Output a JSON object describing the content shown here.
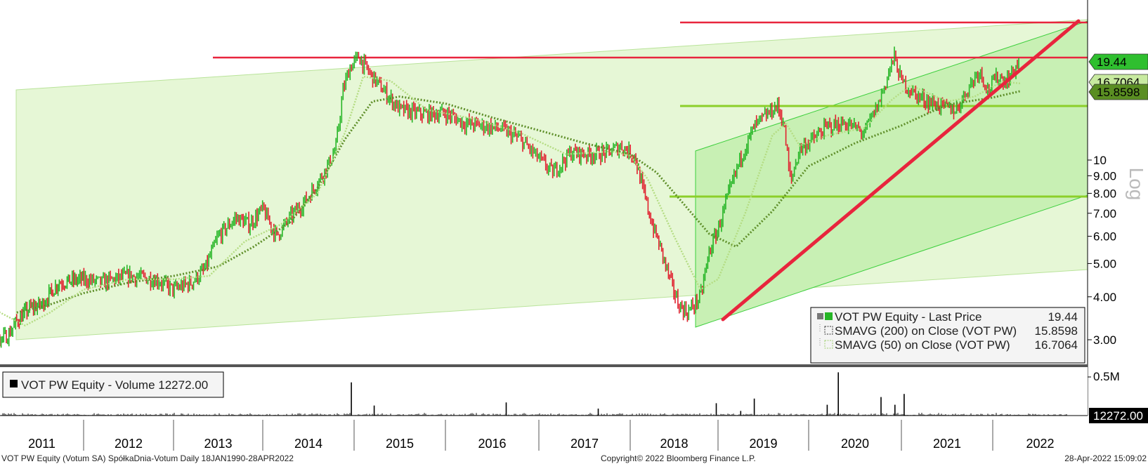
{
  "chart_data": [
    {
      "type": "line",
      "title": "",
      "y_scale": "log",
      "y_axis_label": "Log",
      "y_ticks": [
        3.0,
        4.0,
        5.0,
        6.0,
        7.0,
        8.0,
        9.0,
        10
      ],
      "y_tick_labels": [
        "3.00",
        "4.00",
        "5.00",
        "6.00",
        "7.00",
        "8.00",
        "9.00",
        "10"
      ],
      "x_range": [
        2010.55,
        2022.33
      ],
      "x_labels": [
        "2011",
        "2012",
        "2013",
        "2014",
        "2015",
        "2016",
        "2017",
        "2018",
        "2019",
        "2020",
        "2021",
        "2022"
      ],
      "series": [
        {
          "name": "VOT PW Equity - Last Price",
          "last_value": "19.44",
          "color": "#26b526",
          "x": [
            2010.55,
            2010.65,
            2010.75,
            2010.9,
            2011.0,
            2011.1,
            2011.2,
            2011.35,
            2011.5,
            2011.7,
            2012.0,
            2012.2,
            2012.5,
            2012.8,
            2013.0,
            2013.2,
            2013.35,
            2013.5,
            2013.7,
            2013.85,
            2014.0,
            2014.15,
            2014.3,
            2014.5,
            2014.7,
            2014.8,
            2014.88,
            2014.95,
            2015.05,
            2015.15,
            2015.3,
            2015.5,
            2015.75,
            2016.0,
            2016.2,
            2016.4,
            2016.6,
            2016.8,
            2017.0,
            2017.15,
            2017.35,
            2017.55,
            2017.75,
            2017.9,
            2018.05,
            2018.15,
            2018.25,
            2018.35,
            2018.45,
            2018.55,
            2018.65,
            2018.8,
            2018.9,
            2019.0,
            2019.1,
            2019.25,
            2019.4,
            2019.55,
            2019.65,
            2019.72,
            2019.8,
            2019.9,
            2020.05,
            2020.2,
            2020.4,
            2020.6,
            2020.75,
            2020.85,
            2020.92,
            2021.0,
            2021.15,
            2021.3,
            2021.45,
            2021.6,
            2021.75,
            2021.85,
            2021.95,
            2022.05,
            2022.15,
            2022.3
          ],
          "y": [
            4.3,
            4.5,
            4.1,
            3.7,
            3.0,
            3.1,
            3.4,
            3.7,
            3.8,
            4.4,
            4.5,
            4.4,
            4.6,
            4.5,
            4.2,
            4.4,
            4.8,
            6.0,
            6.8,
            6.5,
            7.2,
            6.0,
            6.8,
            7.8,
            9.5,
            10.8,
            16.0,
            18.5,
            20.0,
            18.2,
            16.2,
            14.0,
            13.6,
            13.7,
            12.8,
            12.6,
            12.3,
            11.5,
            10.1,
            9.2,
            10.5,
            10.4,
            10.5,
            11.0,
            10.3,
            8.1,
            6.5,
            5.5,
            4.5,
            3.8,
            3.6,
            4.0,
            5.4,
            6.3,
            7.7,
            10.2,
            12.5,
            13.6,
            14.4,
            13.0,
            8.6,
            10.8,
            11.5,
            12.5,
            12.8,
            12.0,
            14.5,
            17.5,
            20.0,
            17.0,
            15.5,
            14.8,
            14.3,
            14.0,
            16.5,
            18.3,
            16.0,
            17.5,
            17.0,
            19.44
          ]
        },
        {
          "name": "SMAVG (200)  on Close (VOT PW)",
          "last_value": "15.8598",
          "color": "#5f8f2a",
          "x": [
            2011.2,
            2011.6,
            2012.0,
            2012.5,
            2013.0,
            2013.5,
            2013.9,
            2014.3,
            2014.6,
            2014.9,
            2015.2,
            2015.5,
            2016.0,
            2016.5,
            2017.0,
            2017.5,
            2018.0,
            2018.3,
            2018.6,
            2018.9,
            2019.2,
            2019.6,
            2020.0,
            2020.5,
            2021.0,
            2021.5,
            2022.0,
            2022.3
          ],
          "y": [
            3.6,
            3.8,
            4.1,
            4.4,
            4.6,
            4.9,
            5.6,
            6.6,
            8.3,
            11.5,
            14.8,
            15.3,
            14.6,
            13.3,
            12.2,
            11.2,
            10.4,
            9.2,
            7.5,
            6.1,
            5.6,
            7.1,
            9.6,
            11.2,
            12.6,
            14.5,
            15.2,
            15.86
          ]
        },
        {
          "name": "SMAVG (50)  on Close (VOT PW)",
          "last_value": "16.7064",
          "color": "#b4dc82",
          "x": [
            2010.7,
            2011.0,
            2011.3,
            2011.6,
            2012.0,
            2012.5,
            2013.0,
            2013.4,
            2013.8,
            2014.2,
            2014.6,
            2014.9,
            2015.1,
            2015.4,
            2015.8,
            2016.3,
            2016.8,
            2017.3,
            2017.8,
            2018.0,
            2018.2,
            2018.5,
            2018.8,
            2019.0,
            2019.3,
            2019.6,
            2019.75,
            2019.9,
            2020.2,
            2020.6,
            2020.9,
            2021.1,
            2021.5,
            2021.8,
            2022.1,
            2022.3
          ],
          "y": [
            4.2,
            3.6,
            3.3,
            3.6,
            4.2,
            4.5,
            4.5,
            4.6,
            5.8,
            6.5,
            8.0,
            12.0,
            17.5,
            17.0,
            14.0,
            13.2,
            12.0,
            10.4,
            10.6,
            10.3,
            8.8,
            6.0,
            4.2,
            4.5,
            7.0,
            11.8,
            12.8,
            11.0,
            11.8,
            12.4,
            15.0,
            16.5,
            14.8,
            15.3,
            16.9,
            16.71
          ]
        }
      ],
      "annotations": {
        "horizontal_lines_red": [
          19.44,
          25.8
        ],
        "horizontal_lines_green": [
          14.4,
          7.9
        ],
        "trendline_red": {
          "from": [
            2018.2,
            3.5
          ],
          "to": [
            2022.2,
            25.8
          ]
        }
      }
    },
    {
      "type": "bar",
      "title": "VOT PW Equity - Volume 12272.00",
      "series": [
        {
          "name": "VOT PW Equity - Volume",
          "last_value": "12272.00"
        }
      ],
      "y_ticks": [
        "0.5M"
      ],
      "x_spikes": [
        2014.97,
        2015.22,
        2016.65,
        2017.65,
        2018.98,
        2019.25,
        2019.4,
        2020.2,
        2020.32,
        2020.78,
        2020.93,
        2021.03
      ],
      "spike_volumes": [
        430000,
        130000,
        170000,
        90000,
        160000,
        60000,
        220000,
        140000,
        560000,
        240000,
        140000,
        280000
      ]
    }
  ],
  "legend": {
    "items": [
      {
        "label": "VOT PW Equity - Last Price",
        "value": "19.44",
        "icon": "filled-green-square"
      },
      {
        "label": "SMAVG (200)  on Close (VOT PW)",
        "value": "15.8598",
        "icon": "dotted-square-dark"
      },
      {
        "label": "SMAVG (50)  on Close (VOT PW)",
        "value": "16.7064",
        "icon": "dotted-square-light"
      }
    ]
  },
  "price_tags": [
    {
      "value": "19.44",
      "bg": "#2fbf2f"
    },
    {
      "value": "16.7064",
      "bg": "#c8eaa0"
    },
    {
      "value": "15.8598",
      "bg": "#5a8e22"
    }
  ],
  "volume_tag": "12272.00",
  "volume_panel_label": "VOT PW Equity - Volume 12272.00",
  "footer": {
    "left": "VOT PW Equity (Votum SA) SpółkaDnia-Votum  Daily 18JAN1990-28APR2022",
    "center": "Copyright© 2022 Bloomberg Finance L.P.",
    "right": "28-Apr-2022 15:09:02"
  },
  "colors": {
    "price_line": "#26b526",
    "price_down": "#e0202e",
    "resistance": "#e8253d",
    "support": "#8ccf2a",
    "channel_fill": "#e6f7d6",
    "inner_channel_fill": "#c8f0b4"
  }
}
